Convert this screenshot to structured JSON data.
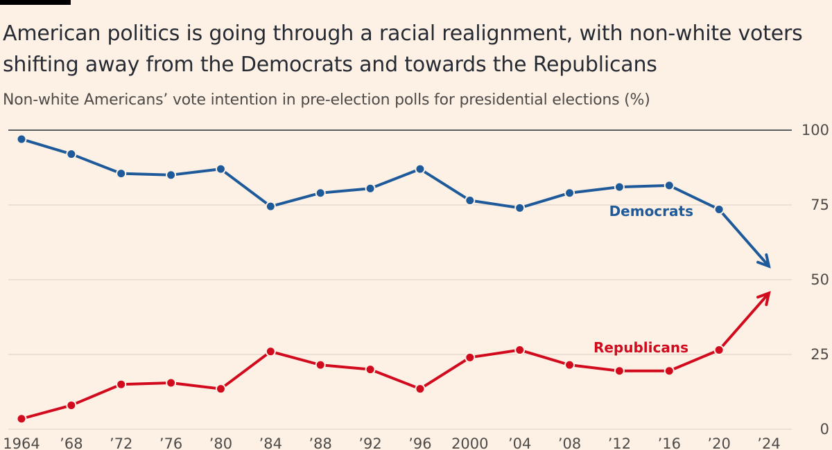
{
  "title": "American politics is going through a racial realignment, with non-white voters shifting away from the Democrats and towards the Republicans",
  "subtitle": "Non-white Americans’ vote intention in pre-election polls for presidential elections (%)",
  "colors": {
    "background": "#fdf1e5",
    "democrats": "#1e5a9a",
    "republicans": "#d10a1e",
    "text": "#262a33",
    "axis_text": "#4d4a47",
    "gridline": "#e3d7cb",
    "top_axis_line": "#262a33"
  },
  "chart_data": {
    "type": "line",
    "title": "American politics is going through a racial realignment, with non-white voters shifting away from the Democrats and towards the Republicans",
    "subtitle": "Non-white Americans’ vote intention in pre-election polls for presidential elections (%)",
    "xlabel": "",
    "ylabel": "",
    "x": [
      1964,
      1968,
      1972,
      1976,
      1980,
      1984,
      1988,
      1992,
      1996,
      2000,
      2004,
      2008,
      2012,
      2016,
      2020,
      2024
    ],
    "x_tick_labels": [
      "1964",
      "’68",
      "’72",
      "’76",
      "’80",
      "’84",
      "’88",
      "’92",
      "’96",
      "2000",
      "’04",
      "’08",
      "’12",
      "’16",
      "’20",
      "’24"
    ],
    "xlim": [
      1964,
      2024
    ],
    "ylim": [
      0,
      100
    ],
    "y_ticks": [
      0,
      25,
      50,
      75,
      100
    ],
    "y_axis_side": "right",
    "grid": true,
    "series": [
      {
        "name": "Democrats",
        "label": "Democrats",
        "color": "#1e5a9a",
        "values": [
          97,
          92,
          85.5,
          85,
          87,
          74.5,
          79,
          80.5,
          87,
          76.5,
          74,
          79,
          81,
          81.5,
          73.5,
          54.5
        ],
        "last_point_arrow": true
      },
      {
        "name": "Republicans",
        "label": "Republicans",
        "color": "#d10a1e",
        "values": [
          3.5,
          8,
          15,
          15.5,
          13.5,
          26,
          21.5,
          20,
          13.5,
          24,
          26.5,
          21.5,
          19.5,
          19.5,
          26.5,
          45.5
        ],
        "last_point_arrow": true
      }
    ]
  }
}
